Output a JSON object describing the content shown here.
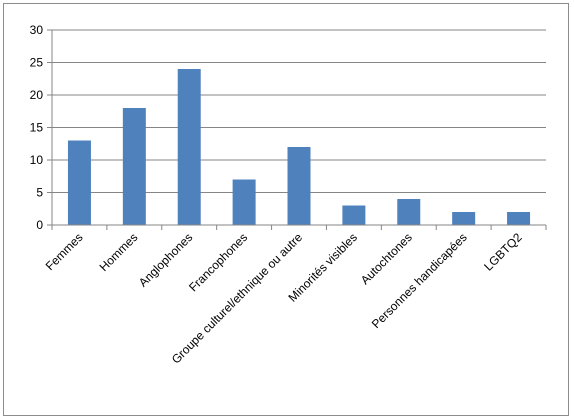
{
  "colors": {
    "bar": "#4f81bd",
    "grid": "#868686",
    "axis": "#868686",
    "frame": "#8c8c8c"
  },
  "chart_data": {
    "type": "bar",
    "categories": [
      "Femmes",
      "Hommes",
      "Anglophones",
      "Francophones",
      "Groupe culturel/ethnique ou autre",
      "Minorités visibles",
      "Autochtones",
      "Personnes handicapées",
      "LGBTQ2"
    ],
    "values": [
      13,
      18,
      24,
      7,
      12,
      3,
      4,
      2,
      2
    ],
    "ylim": [
      0,
      30
    ],
    "yticks": [
      0,
      5,
      10,
      15,
      20,
      25,
      30
    ],
    "grid": true,
    "legend": "none"
  }
}
